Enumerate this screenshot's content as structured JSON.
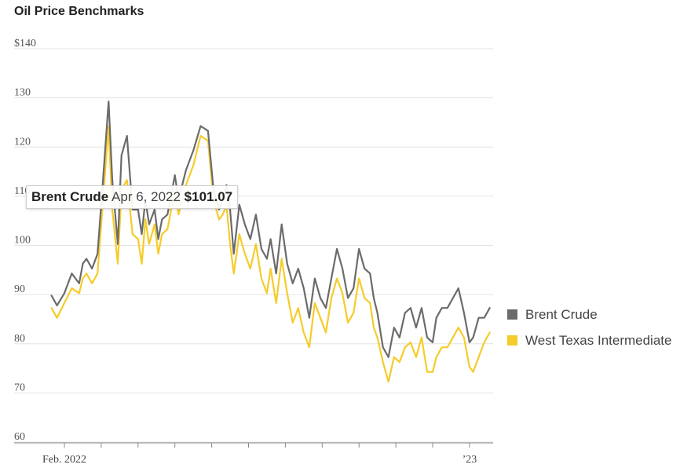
{
  "chart_data": {
    "type": "line",
    "title": "Oil Price Benchmarks",
    "ylim": [
      60,
      140
    ],
    "y_ticks": [
      "$140",
      "130",
      "120",
      "110",
      "100",
      "90",
      "80",
      "70",
      "60"
    ],
    "y_tick_values": [
      140,
      130,
      120,
      110,
      100,
      90,
      80,
      70,
      60
    ],
    "x_labels": [
      "Feb. 2022",
      "’23"
    ],
    "x_label_month_index": [
      0,
      11
    ],
    "x_month_ticks": 12,
    "x_month_range": [
      -0.4,
      11.6
    ],
    "colors": {
      "brent": "#6b6b6b",
      "wti": "#f5cc2a"
    },
    "series": [
      {
        "name": "Brent Crude",
        "key": "brent",
        "x": [
          -0.35,
          -0.2,
          0,
          0.2,
          0.4,
          0.5,
          0.6,
          0.75,
          0.9,
          1.05,
          1.2,
          1.3,
          1.45,
          1.55,
          1.7,
          1.85,
          2.0,
          2.1,
          2.2,
          2.3,
          2.45,
          2.55,
          2.65,
          2.8,
          3.0,
          3.1,
          3.3,
          3.5,
          3.7,
          3.9,
          4.05,
          4.2,
          4.3,
          4.4,
          4.5,
          4.6,
          4.75,
          4.9,
          5.05,
          5.2,
          5.35,
          5.5,
          5.6,
          5.75,
          5.9,
          6.05,
          6.2,
          6.35,
          6.5,
          6.65,
          6.8,
          6.95,
          7.1,
          7.25,
          7.4,
          7.55,
          7.7,
          7.85,
          8.0,
          8.15,
          8.3,
          8.4,
          8.5,
          8.65,
          8.8,
          8.95,
          9.1,
          9.25,
          9.4,
          9.55,
          9.7,
          9.85,
          10.0,
          10.1,
          10.25,
          10.4,
          10.55,
          10.7,
          10.85,
          11.0,
          11.1,
          11.25,
          11.4,
          11.55
        ],
        "values": [
          88.5,
          86.5,
          89,
          93,
          91,
          95,
          96,
          94,
          97,
          112,
          128,
          112,
          99,
          117,
          121,
          106,
          106,
          101,
          108,
          103,
          106,
          100,
          104,
          105,
          113,
          108,
          114,
          118,
          123,
          122,
          110,
          106,
          108,
          111,
          106,
          97,
          107,
          103,
          100,
          105,
          98,
          96,
          100,
          93,
          103,
          95,
          91,
          94,
          90,
          84,
          92,
          88,
          86,
          92,
          98,
          94,
          88,
          90,
          98,
          94,
          93,
          88,
          85,
          78,
          76,
          82,
          80,
          85,
          86,
          82,
          86,
          80,
          79,
          84,
          86,
          86,
          88,
          90,
          85,
          79,
          80,
          84,
          84,
          86
        ],
        "highlight": {
          "date": "Apr 6, 2022",
          "value": "$101.07",
          "x": 2.15
        }
      },
      {
        "name": "West Texas Intermediate",
        "key": "wti",
        "x": [
          -0.35,
          -0.2,
          0,
          0.2,
          0.4,
          0.5,
          0.6,
          0.75,
          0.9,
          1.05,
          1.2,
          1.3,
          1.45,
          1.55,
          1.7,
          1.85,
          2.0,
          2.1,
          2.2,
          2.3,
          2.45,
          2.55,
          2.65,
          2.8,
          3.0,
          3.1,
          3.3,
          3.5,
          3.7,
          3.9,
          4.05,
          4.2,
          4.3,
          4.4,
          4.5,
          4.6,
          4.75,
          4.9,
          5.05,
          5.2,
          5.35,
          5.5,
          5.6,
          5.75,
          5.9,
          6.05,
          6.2,
          6.35,
          6.5,
          6.65,
          6.8,
          6.95,
          7.1,
          7.25,
          7.4,
          7.55,
          7.7,
          7.85,
          8.0,
          8.15,
          8.3,
          8.4,
          8.5,
          8.65,
          8.8,
          8.95,
          9.1,
          9.25,
          9.4,
          9.55,
          9.7,
          9.85,
          10.0,
          10.1,
          10.25,
          10.4,
          10.55,
          10.7,
          10.85,
          11.0,
          11.1,
          11.25,
          11.4,
          11.55
        ],
        "values": [
          86,
          84,
          87,
          90,
          89,
          92,
          93,
          91,
          93,
          108,
          123,
          106,
          95,
          110,
          112,
          101,
          100,
          95,
          104,
          99,
          103,
          97,
          101,
          102,
          110,
          105,
          111,
          115,
          121,
          120,
          108,
          104,
          105,
          107,
          99,
          93,
          101,
          97,
          94,
          99,
          92,
          89,
          94,
          87,
          96,
          89,
          83,
          86,
          81,
          78,
          87,
          84,
          81,
          88,
          92,
          89,
          83,
          85,
          92,
          88,
          87,
          82,
          80,
          75,
          71,
          76,
          75,
          78,
          79,
          76,
          80,
          73,
          73,
          76,
          78,
          78,
          80,
          82,
          80,
          74,
          73,
          76,
          79,
          81
        ]
      }
    ],
    "legend": [
      "Brent Crude",
      "West Texas Intermediate"
    ],
    "legend_position": "right"
  },
  "tooltip": {
    "series_name": "Brent Crude",
    "date": "Apr 6, 2022",
    "value": "$101.07"
  }
}
